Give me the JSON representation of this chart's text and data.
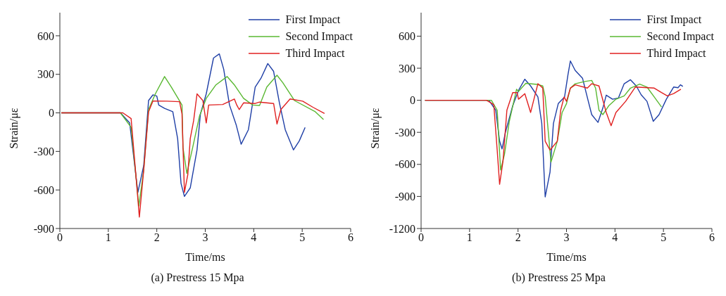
{
  "chart_data": [
    {
      "type": "line",
      "title": "(a) Prestress 15 Mpa",
      "xlabel": "Time/ms",
      "ylabel": "Strain/με",
      "xlim": [
        0,
        6
      ],
      "xticks": [
        0,
        1,
        2,
        3,
        4,
        5,
        6
      ],
      "ylim": [
        -900,
        780
      ],
      "yticks": [
        -900,
        -600,
        -300,
        0,
        300,
        600
      ],
      "legend": "top right",
      "grid": false,
      "marker": "none",
      "line_style": "solid",
      "series": [
        {
          "name": "First Impact",
          "color": "#1f3fa6",
          "x": [
            0.03,
            1.25,
            1.44,
            1.61,
            1.73,
            1.83,
            1.92,
            2.0,
            2.04,
            2.16,
            2.33,
            2.43,
            2.5,
            2.57,
            2.69,
            2.83,
            2.9,
            3.02,
            3.17,
            3.29,
            3.38,
            3.5,
            3.64,
            3.74,
            3.89,
            4.03,
            4.15,
            4.29,
            4.41,
            4.53,
            4.65,
            4.82,
            4.94,
            5.06
          ],
          "values": [
            0,
            0,
            -78,
            -619,
            -410,
            96,
            140,
            131,
            61,
            35,
            9,
            -200,
            -549,
            -650,
            -584,
            -288,
            -9,
            148,
            427,
            459,
            340,
            61,
            -96,
            -244,
            -131,
            201,
            270,
            384,
            323,
            78,
            -131,
            -288,
            -218,
            -113
          ]
        },
        {
          "name": "Second Impact",
          "color": "#5ab832",
          "x": [
            0.03,
            1.25,
            1.47,
            1.63,
            1.73,
            1.83,
            1.97,
            2.16,
            2.3,
            2.52,
            2.54,
            2.62,
            2.74,
            2.88,
            3.02,
            3.22,
            3.45,
            3.6,
            3.79,
            3.98,
            4.12,
            4.27,
            4.48,
            4.6,
            4.84,
            5.27,
            5.44
          ],
          "values": [
            0,
            0,
            -113,
            -724,
            -445,
            26,
            148,
            283,
            201,
            61,
            -270,
            -471,
            -270,
            -26,
            113,
            218,
            283,
            218,
            113,
            61,
            58,
            201,
            293,
            235,
            96,
            9,
            -52
          ]
        },
        {
          "name": "Third Impact",
          "color": "#e02020",
          "x": [
            0.03,
            1.3,
            1.47,
            1.56,
            1.64,
            1.73,
            1.83,
            1.92,
            2.21,
            2.47,
            2.52,
            2.57,
            2.64,
            2.69,
            2.76,
            2.83,
            2.95,
            3.02,
            3.07,
            3.36,
            3.6,
            3.65,
            3.7,
            3.79,
            4.03,
            4.12,
            4.41,
            4.48,
            4.56,
            4.75,
            5.01,
            5.22,
            5.46
          ],
          "values": [
            0,
            0,
            -44,
            -445,
            -811,
            -445,
            9,
            92,
            91,
            87,
            -9,
            -619,
            -480,
            -200,
            -61,
            148,
            96,
            -78,
            61,
            65,
            108,
            61,
            26,
            78,
            73,
            84,
            73,
            -87,
            26,
            108,
            91,
            44,
            -5
          ]
        }
      ]
    },
    {
      "type": "line",
      "title": "(b) Prestress 25 Mpa",
      "xlabel": "Time/ms",
      "ylabel": "Strain/με",
      "xlim": [
        0,
        6
      ],
      "xticks": [
        0,
        1,
        2,
        3,
        4,
        5,
        6
      ],
      "ylim": [
        -1200,
        820
      ],
      "yticks": [
        -1200,
        -900,
        -600,
        -300,
        0,
        300,
        600
      ],
      "legend": "top right",
      "grid": false,
      "marker": "none",
      "line_style": "solid",
      "series": [
        {
          "name": "First Impact",
          "color": "#1f3fa6",
          "x": [
            0.08,
            1.4,
            1.54,
            1.62,
            1.67,
            1.74,
            1.89,
            2.01,
            2.14,
            2.26,
            2.41,
            2.49,
            2.56,
            2.66,
            2.73,
            2.83,
            2.96,
            3.03,
            3.08,
            3.18,
            3.33,
            3.45,
            3.52,
            3.65,
            3.75,
            3.82,
            3.95,
            4.07,
            4.19,
            4.32,
            4.44,
            4.54,
            4.66,
            4.79,
            4.91,
            5.06,
            5.21,
            5.3,
            5.35,
            5.4
          ],
          "values": [
            0,
            0,
            -93,
            -383,
            -455,
            -300,
            -52,
            93,
            197,
            134,
            31,
            -217,
            -904,
            -672,
            -217,
            -31,
            31,
            238,
            368,
            279,
            207,
            -10,
            -134,
            -207,
            -72,
            48,
            10,
            21,
            155,
            192,
            134,
            52,
            -10,
            -197,
            -134,
            10,
            124,
            118,
            145,
            130
          ]
        },
        {
          "name": "Second Impact",
          "color": "#5ab832",
          "x": [
            0.08,
            1.45,
            1.57,
            1.64,
            1.72,
            1.82,
            1.97,
            2.01,
            2.16,
            2.39,
            2.51,
            2.56,
            2.68,
            2.81,
            2.91,
            3.0,
            3.08,
            3.18,
            3.38,
            3.52,
            3.6,
            3.67,
            3.75,
            3.87,
            4.02,
            4.19,
            4.32,
            4.51,
            4.66,
            4.81,
            4.96
          ],
          "values": [
            0,
            0,
            -93,
            -652,
            -507,
            -197,
            103,
            83,
            159,
            149,
            134,
            31,
            -579,
            -383,
            -114,
            -31,
            114,
            155,
            176,
            186,
            114,
            -93,
            -134,
            -52,
            10,
            41,
            114,
            151,
            124,
            31,
            -62
          ]
        },
        {
          "name": "Third Impact",
          "color": "#e02020",
          "x": [
            0.08,
            1.35,
            1.5,
            1.57,
            1.62,
            1.69,
            1.77,
            1.89,
            1.98,
            2.01,
            2.14,
            2.26,
            2.34,
            2.41,
            2.51,
            2.56,
            2.66,
            2.81,
            2.88,
            2.95,
            3.0,
            3.08,
            3.18,
            3.43,
            3.52,
            3.67,
            3.82,
            3.92,
            4.02,
            4.22,
            4.42,
            4.81,
            4.96,
            5.08,
            5.21,
            5.36
          ],
          "values": [
            0,
            0,
            -41,
            -466,
            -786,
            -569,
            -93,
            72,
            72,
            10,
            62,
            -114,
            31,
            155,
            114,
            -383,
            -466,
            -383,
            -93,
            31,
            -10,
            114,
            145,
            114,
            155,
            134,
            -114,
            -238,
            -114,
            -10,
            124,
            114,
            72,
            41,
            62,
            103
          ]
        }
      ]
    }
  ]
}
